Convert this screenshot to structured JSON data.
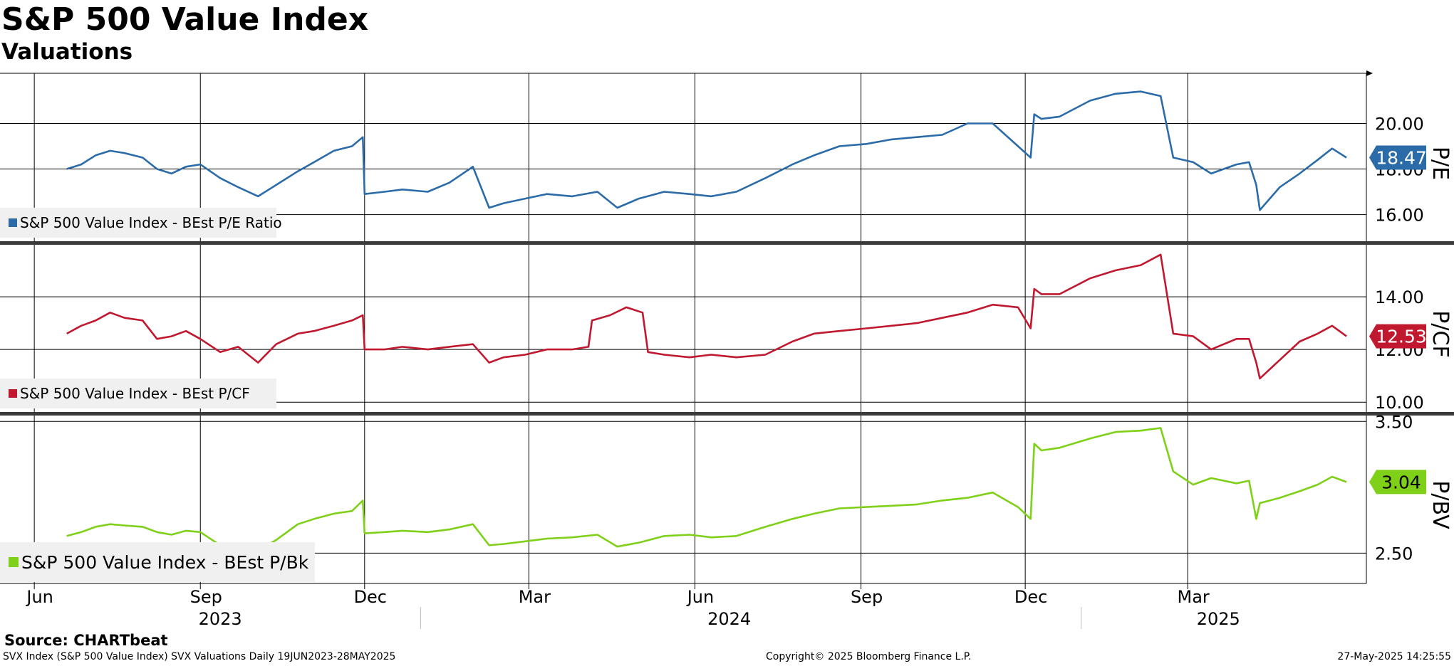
{
  "header": {
    "title": "S&P 500 Value Index",
    "subtitle": "Valuations"
  },
  "footer": {
    "source": "Source: CHARTbeat",
    "left": "SVX Index (S&P 500 Value Index) SVX Valuations  Daily 19JUN2023-28MAY2025",
    "middle": "Copyright© 2025 Bloomberg Finance L.P.",
    "right": "27-May-2025 14:25:55"
  },
  "x_axis": {
    "months": [
      "Jun",
      "Sep",
      "Dec",
      "Mar",
      "Jun",
      "Sep",
      "Dec",
      "Mar"
    ],
    "years": [
      "2023",
      "2024",
      "2025"
    ]
  },
  "colors": {
    "pe": "#2b6ca8",
    "pcf": "#c0182f",
    "pbv": "#7fd018",
    "grid": "#000000"
  },
  "chart_data": [
    {
      "type": "line",
      "ylabel": "P/E",
      "ylim": [
        14.8,
        22.2
      ],
      "yticks": [
        16.0,
        18.0,
        20.0
      ],
      "ytick_labels": [
        "16.00",
        "18.00",
        "20.00"
      ],
      "last_value_label": "18.47",
      "legend": "S&P 500 Value Index - BEst P/E Ratio",
      "series": [
        {
          "name": "S&P 500 Value Index - BEst P/E Ratio",
          "x": [
            "2023-06-19",
            "2023-06-27",
            "2023-07-05",
            "2023-07-13",
            "2023-07-21",
            "2023-07-31",
            "2023-08-08",
            "2023-08-16",
            "2023-08-24",
            "2023-09-01",
            "2023-09-12",
            "2023-09-22",
            "2023-10-03",
            "2023-10-13",
            "2023-10-25",
            "2023-11-03",
            "2023-11-14",
            "2023-11-24",
            "2023-11-30",
            "2023-12-01",
            "2023-12-12",
            "2023-12-22",
            "2024-01-05",
            "2024-01-17",
            "2024-01-30",
            "2024-02-08",
            "2024-02-16",
            "2024-02-28",
            "2024-03-11",
            "2024-03-25",
            "2024-04-08",
            "2024-04-19",
            "2024-05-01",
            "2024-05-15",
            "2024-05-29",
            "2024-06-10",
            "2024-06-24",
            "2024-07-10",
            "2024-07-25",
            "2024-08-06",
            "2024-08-20",
            "2024-09-04",
            "2024-09-18",
            "2024-10-02",
            "2024-10-16",
            "2024-10-30",
            "2024-11-13",
            "2024-11-27",
            "2024-12-04",
            "2024-12-06",
            "2024-12-10",
            "2024-12-20",
            "2025-01-06",
            "2025-01-20",
            "2025-02-03",
            "2025-02-14",
            "2025-02-21",
            "2025-03-04",
            "2025-03-14",
            "2025-03-28",
            "2025-04-04",
            "2025-04-08",
            "2025-04-10",
            "2025-04-21",
            "2025-05-02",
            "2025-05-12",
            "2025-05-20",
            "2025-05-28"
          ],
          "values": [
            18.0,
            18.2,
            18.6,
            18.8,
            18.7,
            18.5,
            18.0,
            17.8,
            18.1,
            18.2,
            17.6,
            17.2,
            16.8,
            17.3,
            17.9,
            18.3,
            18.8,
            19.0,
            19.4,
            16.9,
            17.0,
            17.1,
            17.0,
            17.4,
            18.1,
            16.3,
            16.5,
            16.7,
            16.9,
            16.8,
            17.0,
            16.3,
            16.7,
            17.0,
            16.9,
            16.8,
            17.0,
            17.6,
            18.2,
            18.6,
            19.0,
            19.1,
            19.3,
            19.4,
            19.5,
            20.0,
            20.0,
            19.0,
            18.5,
            20.4,
            20.2,
            20.3,
            21.0,
            21.3,
            21.4,
            21.2,
            18.5,
            18.3,
            17.8,
            18.2,
            18.3,
            17.3,
            16.2,
            17.2,
            17.8,
            18.4,
            18.9,
            18.5
          ]
        }
      ]
    },
    {
      "type": "line",
      "ylabel": "P/CF",
      "ylim": [
        9.6,
        16.0
      ],
      "yticks": [
        10.0,
        12.0,
        14.0
      ],
      "ytick_labels": [
        "10.00",
        "12.00",
        "14.00"
      ],
      "last_value_label": "12.53",
      "legend": "S&P 500 Value Index - BEst P/CF",
      "series": [
        {
          "name": "S&P 500 Value Index - BEst P/CF",
          "x": [
            "2023-06-19",
            "2023-06-27",
            "2023-07-05",
            "2023-07-13",
            "2023-07-21",
            "2023-07-31",
            "2023-08-08",
            "2023-08-16",
            "2023-08-24",
            "2023-09-01",
            "2023-09-12",
            "2023-09-22",
            "2023-10-03",
            "2023-10-13",
            "2023-10-25",
            "2023-11-03",
            "2023-11-14",
            "2023-11-24",
            "2023-11-30",
            "2023-12-01",
            "2023-12-12",
            "2023-12-22",
            "2024-01-05",
            "2024-01-17",
            "2024-01-30",
            "2024-02-08",
            "2024-02-16",
            "2024-02-28",
            "2024-03-11",
            "2024-03-25",
            "2024-04-03",
            "2024-04-05",
            "2024-04-15",
            "2024-04-24",
            "2024-05-03",
            "2024-05-06",
            "2024-05-15",
            "2024-05-29",
            "2024-06-10",
            "2024-06-24",
            "2024-07-10",
            "2024-07-25",
            "2024-08-06",
            "2024-08-20",
            "2024-09-04",
            "2024-09-18",
            "2024-10-02",
            "2024-10-16",
            "2024-10-30",
            "2024-11-13",
            "2024-11-27",
            "2024-12-04",
            "2024-12-06",
            "2024-12-10",
            "2024-12-20",
            "2025-01-06",
            "2025-01-20",
            "2025-02-03",
            "2025-02-14",
            "2025-02-21",
            "2025-03-04",
            "2025-03-14",
            "2025-03-28",
            "2025-04-04",
            "2025-04-08",
            "2025-04-10",
            "2025-04-21",
            "2025-05-02",
            "2025-05-12",
            "2025-05-20",
            "2025-05-28"
          ],
          "values": [
            12.6,
            12.9,
            13.1,
            13.4,
            13.2,
            13.1,
            12.4,
            12.5,
            12.7,
            12.4,
            11.9,
            12.1,
            11.5,
            12.2,
            12.6,
            12.7,
            12.9,
            13.1,
            13.3,
            12.0,
            12.0,
            12.1,
            12.0,
            12.1,
            12.2,
            11.5,
            11.7,
            11.8,
            12.0,
            12.0,
            12.1,
            13.1,
            13.3,
            13.6,
            13.4,
            11.9,
            11.8,
            11.7,
            11.8,
            11.7,
            11.8,
            12.3,
            12.6,
            12.7,
            12.8,
            12.9,
            13.0,
            13.2,
            13.4,
            13.7,
            13.6,
            12.8,
            14.3,
            14.1,
            14.1,
            14.7,
            15.0,
            15.2,
            15.6,
            12.6,
            12.5,
            12.0,
            12.4,
            12.4,
            11.5,
            10.9,
            11.6,
            12.3,
            12.6,
            12.9,
            12.5
          ]
        }
      ]
    },
    {
      "type": "line",
      "ylabel": "P/BV",
      "ylim": [
        2.27,
        3.55
      ],
      "yticks": [
        2.5,
        3.5
      ],
      "ytick_labels": [
        "2.50",
        "3.50"
      ],
      "last_value_label": "3.04",
      "legend": "S&P 500 Value Index - BEst P/Bk",
      "series": [
        {
          "name": "S&P 500 Value Index - BEst P/Bk",
          "x": [
            "2023-06-19",
            "2023-06-27",
            "2023-07-05",
            "2023-07-13",
            "2023-07-21",
            "2023-07-31",
            "2023-08-08",
            "2023-08-16",
            "2023-08-24",
            "2023-09-01",
            "2023-09-12",
            "2023-09-22",
            "2023-10-03",
            "2023-10-13",
            "2023-10-25",
            "2023-11-03",
            "2023-11-14",
            "2023-11-24",
            "2023-11-30",
            "2023-12-01",
            "2023-12-12",
            "2023-12-22",
            "2024-01-05",
            "2024-01-17",
            "2024-01-30",
            "2024-02-08",
            "2024-02-16",
            "2024-02-28",
            "2024-03-11",
            "2024-03-25",
            "2024-04-08",
            "2024-04-19",
            "2024-05-01",
            "2024-05-15",
            "2024-05-29",
            "2024-06-10",
            "2024-06-24",
            "2024-07-10",
            "2024-07-25",
            "2024-08-06",
            "2024-08-20",
            "2024-09-04",
            "2024-09-18",
            "2024-10-02",
            "2024-10-16",
            "2024-10-30",
            "2024-11-13",
            "2024-11-27",
            "2024-12-04",
            "2024-12-06",
            "2024-12-10",
            "2024-12-20",
            "2025-01-06",
            "2025-01-20",
            "2025-02-03",
            "2025-02-14",
            "2025-02-21",
            "2025-03-04",
            "2025-03-14",
            "2025-03-28",
            "2025-04-04",
            "2025-04-08",
            "2025-04-10",
            "2025-04-21",
            "2025-05-02",
            "2025-05-12",
            "2025-05-20",
            "2025-05-28"
          ],
          "values": [
            2.63,
            2.66,
            2.7,
            2.72,
            2.71,
            2.7,
            2.66,
            2.64,
            2.67,
            2.66,
            2.56,
            2.55,
            2.52,
            2.6,
            2.72,
            2.76,
            2.8,
            2.82,
            2.9,
            2.65,
            2.66,
            2.67,
            2.66,
            2.68,
            2.72,
            2.56,
            2.57,
            2.59,
            2.61,
            2.62,
            2.64,
            2.55,
            2.58,
            2.63,
            2.64,
            2.62,
            2.63,
            2.7,
            2.76,
            2.8,
            2.84,
            2.85,
            2.86,
            2.87,
            2.9,
            2.92,
            2.96,
            2.85,
            2.76,
            3.33,
            3.28,
            3.3,
            3.37,
            3.42,
            3.43,
            3.45,
            3.12,
            3.02,
            3.07,
            3.03,
            3.05,
            2.76,
            2.88,
            2.92,
            2.97,
            3.02,
            3.08,
            3.04
          ]
        }
      ]
    }
  ]
}
